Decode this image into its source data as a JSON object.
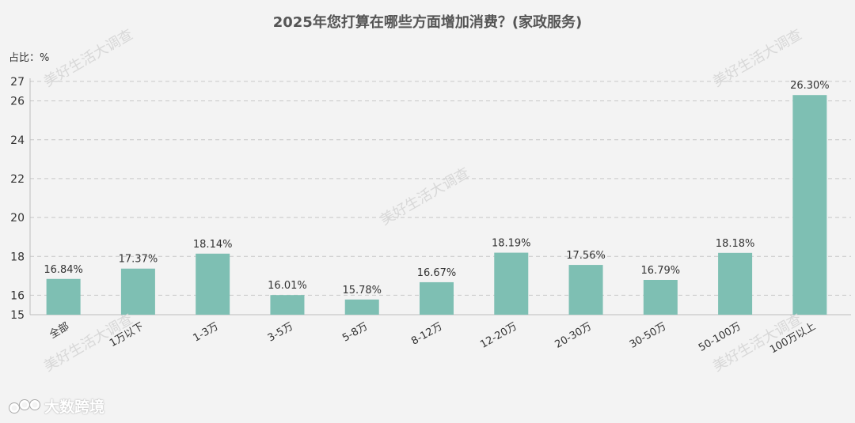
{
  "chart_data": {
    "type": "bar",
    "title": "2025年您打算在哪些方面增加消费？(家政服务)",
    "y_unit_label": "占比：%",
    "categories": [
      "全部",
      "1万以下",
      "1-3万",
      "3-5万",
      "5-8万",
      "8-12万",
      "12-20万",
      "20-30万",
      "30-50万",
      "50-100万",
      "100万以上"
    ],
    "values": [
      16.84,
      17.37,
      18.14,
      16.01,
      15.78,
      16.67,
      18.19,
      17.56,
      16.79,
      18.18,
      26.3
    ],
    "data_labels": [
      "16.84%",
      "17.37%",
      "18.14%",
      "16.01%",
      "15.78%",
      "16.67%",
      "18.19%",
      "17.56%",
      "16.79%",
      "18.18%",
      "26.30%"
    ],
    "ylim": [
      15,
      27
    ],
    "yticks": [
      15,
      16,
      18,
      20,
      22,
      24,
      26,
      27
    ],
    "grid": true,
    "legend": "none",
    "bar_color": "#7ebfb3"
  },
  "watermark": "美好生活大调查",
  "logo": {
    "text": "大数跨境",
    "icon": "logo-glyph-icon"
  }
}
